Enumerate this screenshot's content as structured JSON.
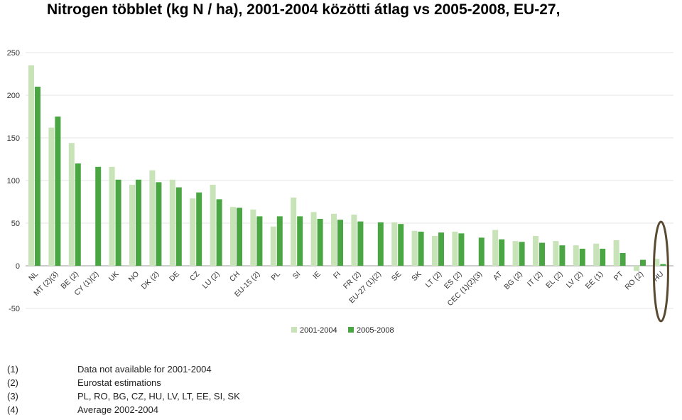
{
  "title": "Nitrogen többlet (kg N / ha), 2001-2004 közötti átlag vs 2005-2008, EU-27,",
  "chart_data": {
    "type": "bar",
    "ylim": [
      -50,
      250
    ],
    "yticks": [
      250,
      200,
      150,
      100,
      50,
      0,
      -50
    ],
    "categories": [
      "NL",
      "MT (2)(3)",
      "BE (2)",
      "CY (1)(2)",
      "UK",
      "NO",
      "DK (2)",
      "DE",
      "CZ",
      "LU (2)",
      "CH",
      "EU-15 (2)",
      "PL",
      "SI",
      "IE",
      "FI",
      "FR (2)",
      "EU-27 (1)(2)",
      "SE",
      "SK",
      "LT (2)",
      "ES (2)",
      "CEC (1)(2)(3)",
      "AT",
      "BG (2)",
      "IT (2)",
      "EL (2)",
      "LV (2)",
      "EE (1)",
      "PT",
      "RO (2)",
      "HU"
    ],
    "series": [
      {
        "name": "2001-2004",
        "color": "#c8e3b8",
        "values": [
          235,
          162,
          144,
          null,
          116,
          95,
          112,
          101,
          79,
          95,
          69,
          66,
          46,
          80,
          63,
          61,
          60,
          null,
          51,
          41,
          35,
          40,
          null,
          42,
          29,
          35,
          29,
          24,
          26,
          30,
          -6,
          8
        ]
      },
      {
        "name": "2005-2008",
        "color": "#4aa642",
        "values": [
          210,
          175,
          120,
          116,
          101,
          101,
          98,
          92,
          86,
          78,
          68,
          58,
          58,
          58,
          55,
          54,
          52,
          51,
          49,
          40,
          39,
          38,
          33,
          31,
          28,
          27,
          24,
          20,
          20,
          15,
          7,
          2
        ]
      }
    ],
    "legend": [
      "2001-2004",
      "2005-2008"
    ],
    "legend_position": "bottom-center",
    "highlight": "HU",
    "highlight_color": "#5a4a32"
  },
  "notes": [
    {
      "marker": "(1)",
      "text": "Data not available for 2001-2004"
    },
    {
      "marker": "(2)",
      "text": "Eurostat estimations"
    },
    {
      "marker": "(3)",
      "text": "PL, RO, BG, CZ, HU, LV, LT, EE, SI, SK"
    },
    {
      "marker": "(4)",
      "text": "Average 2002-2004"
    }
  ]
}
